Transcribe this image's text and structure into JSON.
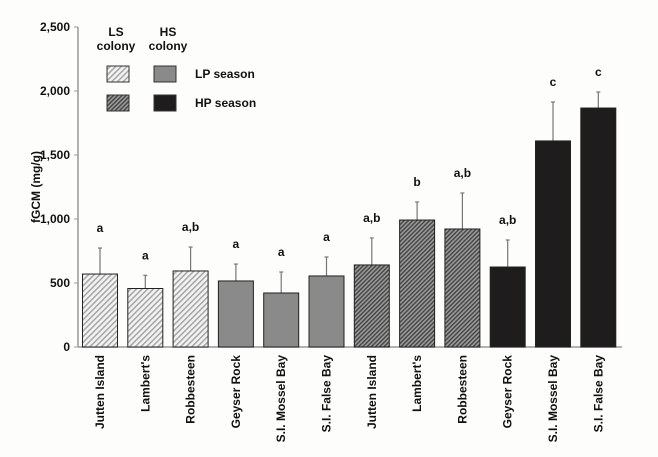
{
  "chart_data": {
    "type": "bar",
    "title": "",
    "xlabel": "",
    "ylabel": "fGCM (mg/g)",
    "ylim": [
      0,
      2500
    ],
    "yticks": [
      0,
      500,
      1000,
      1500,
      2000,
      2500
    ],
    "ytick_labels": [
      "0",
      "500",
      "1,000",
      "1,500",
      "2,000",
      "2,500"
    ],
    "grid": false,
    "categories": [
      "Jutten Island",
      "Lambert's",
      "Robbesteen",
      "Geyser Rock",
      "S.I. Mossel Bay",
      "S.I. False Bay",
      "Jutten Island",
      "Lambert's",
      "Robbesteen",
      "Geyser Rock",
      "S.I. Mossel Bay",
      "S.I. False Bay"
    ],
    "values": [
      570,
      457,
      594,
      516,
      422,
      555,
      641,
      992,
      922,
      625,
      1610,
      1867
    ],
    "error_plus": [
      203,
      103,
      187,
      132,
      164,
      148,
      211,
      141,
      281,
      211,
      304,
      125
    ],
    "group": [
      "LS-LP",
      "LS-LP",
      "LS-LP",
      "HS-LP",
      "HS-LP",
      "HS-LP",
      "LS-HP",
      "LS-HP",
      "LS-HP",
      "HS-HP",
      "HS-HP",
      "HS-HP"
    ],
    "significance_labels": [
      "a",
      "a",
      "a,b",
      "a",
      "a",
      "a",
      "a,b",
      "b",
      "a,b",
      "a,b",
      "c",
      "c"
    ],
    "legend": {
      "placement": "top-left",
      "column_headers": [
        "LS\ncolony",
        "HS\ncolony"
      ],
      "col1": [
        "LS",
        "colony"
      ],
      "col2": [
        "HS",
        "colony"
      ],
      "rows": [
        "LP season",
        "HP season"
      ]
    },
    "colors": {
      "LS-LP": "#e8e8e8",
      "HS-LP": "#8a8a8a",
      "LS-HP": "#6a6a6a",
      "HS-HP": "#1e1c1d"
    }
  }
}
